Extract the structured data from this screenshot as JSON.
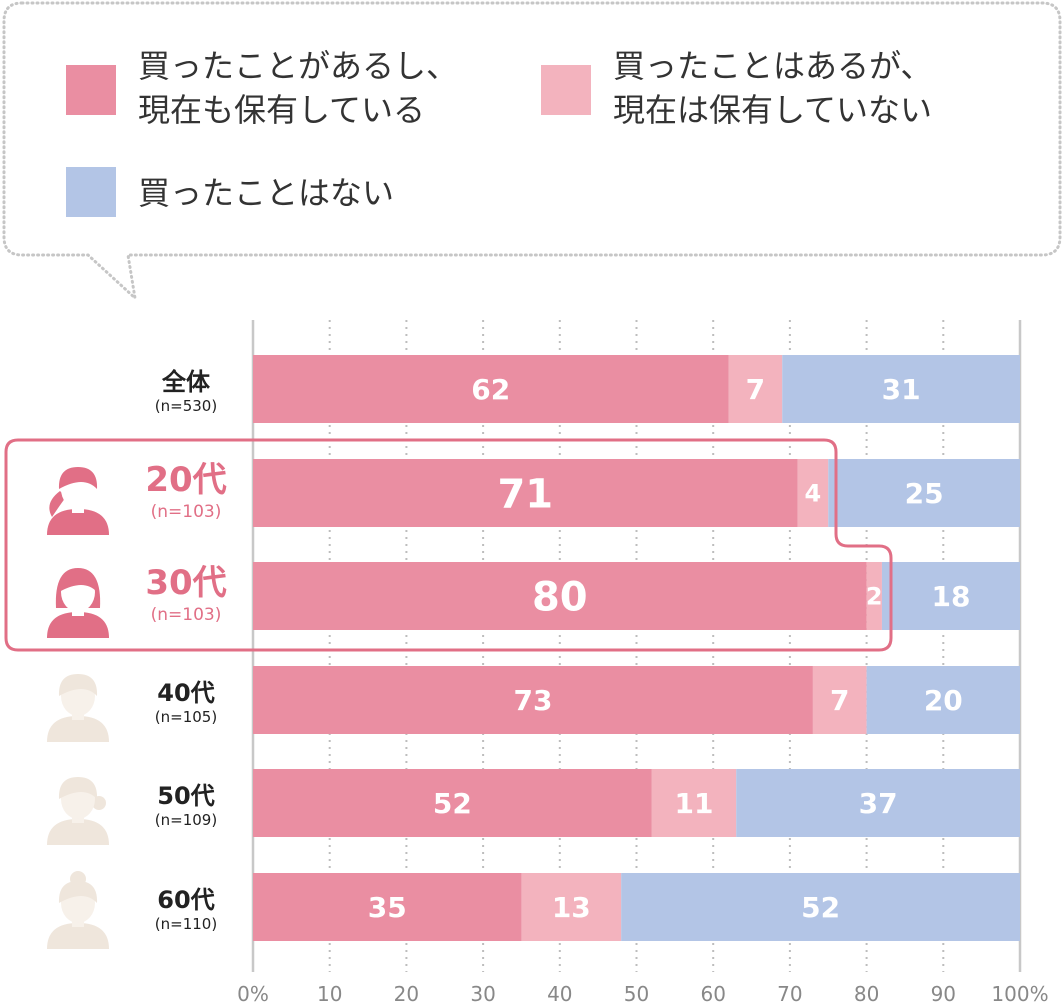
{
  "chart_data": {
    "type": "bar",
    "orientation": "horizontal",
    "stacked": true,
    "legend": [
      {
        "lines": [
          "買ったことがあるし、",
          "現在も保有している"
        ],
        "color": "#ea8ea2"
      },
      {
        "lines": [
          "買ったことはあるが、",
          "現在は保有していない"
        ],
        "color": "#f3b3be"
      },
      {
        "lines": [
          "買ったことはない"
        ],
        "color": "#b3c5e6"
      }
    ],
    "legend_placement": "top",
    "categories": [
      {
        "name": "全体",
        "n": "(n=530)",
        "highlight": false,
        "icon": "none"
      },
      {
        "name": "20代",
        "n": "(n=103)",
        "highlight": true,
        "icon": "woman-ponytail-icon"
      },
      {
        "name": "30代",
        "n": "(n=103)",
        "highlight": true,
        "icon": "woman-bob-icon"
      },
      {
        "name": "40代",
        "n": "(n=105)",
        "highlight": false,
        "icon": "woman-short-hair-icon"
      },
      {
        "name": "50代",
        "n": "(n=109)",
        "highlight": false,
        "icon": "woman-side-bun-icon"
      },
      {
        "name": "60代",
        "n": "(n=110)",
        "highlight": false,
        "icon": "woman-top-bun-icon"
      }
    ],
    "series": [
      {
        "color": "#ea8ea2",
        "values": [
          62,
          71,
          80,
          73,
          52,
          35
        ]
      },
      {
        "color": "#f3b3be",
        "values": [
          7,
          4,
          2,
          7,
          11,
          13
        ]
      },
      {
        "color": "#b3c5e6",
        "values": [
          31,
          25,
          18,
          20,
          37,
          52
        ]
      }
    ],
    "x_ticks": [
      "0%",
      "10",
      "20",
      "30",
      "40",
      "50",
      "60",
      "70",
      "80",
      "90",
      "100%"
    ],
    "xlim": [
      0,
      100
    ],
    "grid": true,
    "highlight_color": "#e16f86",
    "icon_color": "#efe6dc"
  }
}
